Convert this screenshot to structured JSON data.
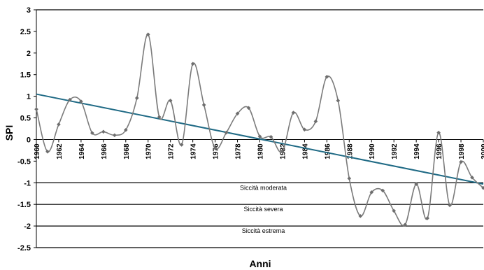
{
  "chart_data": {
    "type": "line",
    "xlabel": "Anni",
    "ylabel": "SPI",
    "xlim": [
      1960,
      2000
    ],
    "ylim": [
      -2.5,
      3
    ],
    "yticks": [
      3,
      2.5,
      2,
      1.5,
      1,
      0.5,
      0,
      -0.5,
      -1,
      -1.5,
      -2,
      -2.5
    ],
    "xticks": [
      1960,
      1962,
      1964,
      1966,
      1968,
      1970,
      1972,
      1974,
      1976,
      1978,
      1980,
      1982,
      1984,
      1986,
      1988,
      1990,
      1992,
      1994,
      1996,
      1998,
      2000
    ],
    "grid": false,
    "legend": "none",
    "series": [
      {
        "values": [
          [
            1960,
            0.7
          ],
          [
            1961,
            -0.28
          ],
          [
            1962,
            0.35
          ],
          [
            1963,
            0.92
          ],
          [
            1964,
            0.88
          ],
          [
            1965,
            0.15
          ],
          [
            1966,
            0.18
          ],
          [
            1967,
            0.1
          ],
          [
            1968,
            0.22
          ],
          [
            1969,
            0.96
          ],
          [
            1970,
            2.43
          ],
          [
            1971,
            0.52
          ],
          [
            1972,
            0.9
          ],
          [
            1973,
            -0.12
          ],
          [
            1974,
            1.75
          ],
          [
            1975,
            0.8
          ],
          [
            1976,
            -0.2
          ],
          [
            1977,
            0.16
          ],
          [
            1978,
            0.6
          ],
          [
            1979,
            0.73
          ],
          [
            1980,
            0.07
          ],
          [
            1981,
            0.06
          ],
          [
            1982,
            -0.28
          ],
          [
            1983,
            0.62
          ],
          [
            1984,
            0.23
          ],
          [
            1985,
            0.42
          ],
          [
            1986,
            1.45
          ],
          [
            1987,
            0.9
          ],
          [
            1988,
            -0.9
          ],
          [
            1989,
            -1.77
          ],
          [
            1990,
            -1.22
          ],
          [
            1991,
            -1.18
          ],
          [
            1992,
            -1.65
          ],
          [
            1993,
            -1.97
          ],
          [
            1994,
            -1.03
          ],
          [
            1995,
            -1.82
          ],
          [
            1996,
            0.16
          ],
          [
            1997,
            -1.52
          ],
          [
            1998,
            -0.52
          ],
          [
            1999,
            -0.88
          ],
          [
            2000,
            -1.12
          ]
        ],
        "color": "#7b7b7b"
      },
      {
        "type": "trendline",
        "values": [
          [
            1960,
            1.05
          ],
          [
            2000,
            -1.03
          ]
        ],
        "color": "#1f6a85"
      }
    ],
    "thresholds": [
      {
        "value": -1,
        "label": "Siccità moderata"
      },
      {
        "value": -1.5,
        "label": "Siccità severa"
      },
      {
        "value": -2,
        "label": "Siccità estrema"
      }
    ]
  }
}
